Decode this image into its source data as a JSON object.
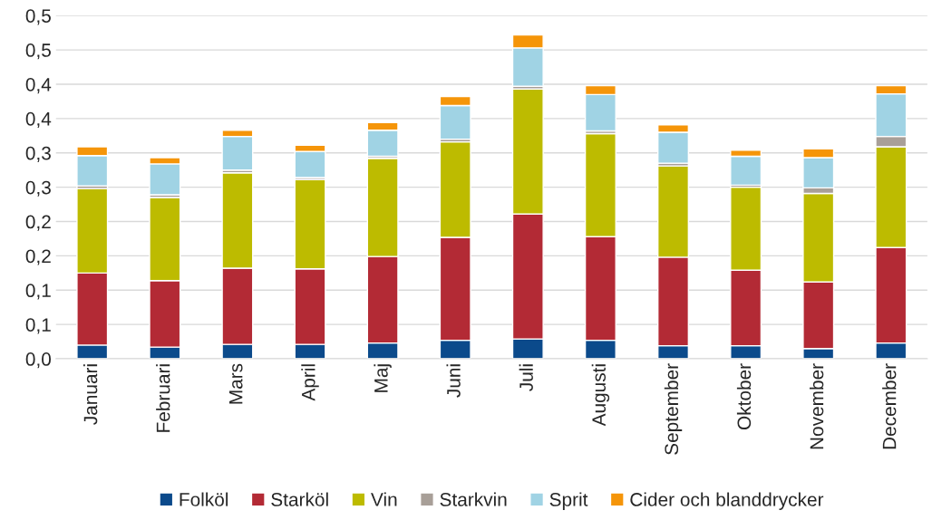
{
  "chart_data": {
    "type": "bar",
    "stacked": true,
    "categories": [
      "Januari",
      "Februari",
      "Mars",
      "April",
      "Maj",
      "Juni",
      "Juli",
      "Augusti",
      "September",
      "Oktober",
      "November",
      "December"
    ],
    "series": [
      {
        "name": "Folköl",
        "color": "#0b4a8b",
        "values": [
          0.02,
          0.017,
          0.021,
          0.021,
          0.023,
          0.027,
          0.029,
          0.027,
          0.019,
          0.019,
          0.015,
          0.023
        ]
      },
      {
        "name": "Starköl",
        "color": "#b32a35",
        "values": [
          0.105,
          0.097,
          0.111,
          0.11,
          0.126,
          0.15,
          0.182,
          0.151,
          0.129,
          0.11,
          0.097,
          0.139
        ]
      },
      {
        "name": "Vin",
        "color": "#bdbb00",
        "values": [
          0.123,
          0.121,
          0.139,
          0.13,
          0.143,
          0.139,
          0.182,
          0.15,
          0.133,
          0.121,
          0.129,
          0.147
        ]
      },
      {
        "name": "Starkvin",
        "color": "#a89f98",
        "values": [
          0.004,
          0.004,
          0.004,
          0.003,
          0.003,
          0.004,
          0.004,
          0.004,
          0.004,
          0.003,
          0.008,
          0.015
        ]
      },
      {
        "name": "Sprit",
        "color": "#a0d3e4",
        "values": [
          0.044,
          0.045,
          0.049,
          0.038,
          0.038,
          0.049,
          0.056,
          0.053,
          0.045,
          0.042,
          0.044,
          0.062
        ]
      },
      {
        "name": "Cider och blanddrycker",
        "color": "#f59509",
        "values": [
          0.013,
          0.009,
          0.009,
          0.009,
          0.011,
          0.013,
          0.019,
          0.013,
          0.011,
          0.009,
          0.013,
          0.012
        ]
      }
    ],
    "ylim": [
      0,
      0.5
    ],
    "yticks": [
      {
        "value": 0,
        "label": "0,0"
      },
      {
        "value": 0.05,
        "label": "0,1"
      },
      {
        "value": 0.1,
        "label": "0,1"
      },
      {
        "value": 0.15,
        "label": "0,2"
      },
      {
        "value": 0.2,
        "label": "0,2"
      },
      {
        "value": 0.25,
        "label": "0,3"
      },
      {
        "value": 0.3,
        "label": "0,3"
      },
      {
        "value": 0.35,
        "label": "0,4"
      },
      {
        "value": 0.4,
        "label": "0,4"
      },
      {
        "value": 0.45,
        "label": "0,5"
      },
      {
        "value": 0.5,
        "label": "0,5"
      }
    ],
    "grid": "y",
    "legend": "bottom"
  }
}
